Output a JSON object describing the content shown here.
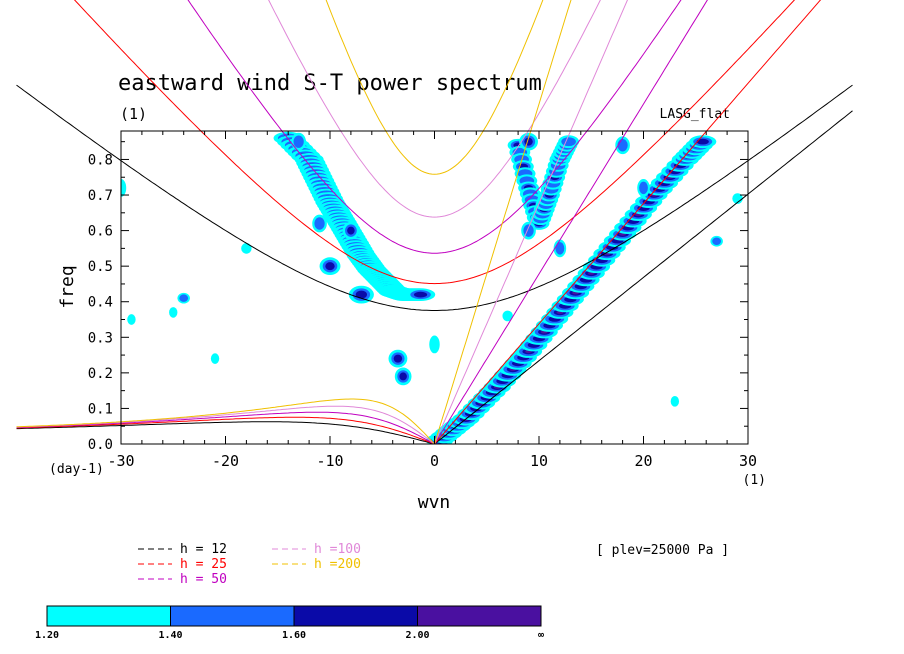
{
  "chart_data": {
    "type": "heatmap",
    "title": "eastward wind S-T power spectrum",
    "subtitle": "(1)",
    "top_right_label": "LASG_flat",
    "xlabel": "wvn",
    "ylabel": "freq",
    "x_unit_label": "(1)",
    "y_unit_label": "(day-1)",
    "xlim": [
      -30,
      30
    ],
    "ylim": [
      0.0,
      0.88
    ],
    "x_ticks": [
      -30,
      -20,
      -10,
      0,
      10,
      20,
      30
    ],
    "x_tick_labels": [
      "-30",
      "-20",
      "-10",
      "0",
      "10",
      "20",
      "30"
    ],
    "y_ticks": [
      0.0,
      0.1,
      0.2,
      0.3,
      0.4,
      0.5,
      0.6,
      0.7,
      0.8
    ],
    "y_tick_labels": [
      "0.0",
      "0.1",
      "0.2",
      "0.3",
      "0.4",
      "0.5",
      "0.6",
      "0.7",
      "0.8"
    ],
    "level_note": "[ plev=25000 Pa ]",
    "dispersion_curves": [
      {
        "label": "h = 12",
        "h": 12,
        "color": "#000000"
      },
      {
        "label": "h = 25",
        "h": 25,
        "color": "#ff0000"
      },
      {
        "label": "h = 50",
        "h": 50,
        "color": "#c000c0"
      },
      {
        "label": "h =100",
        "h": 100,
        "color": "#e088d8"
      },
      {
        "label": "h =200",
        "h": 200,
        "color": "#f0c000"
      }
    ],
    "colorbar": {
      "levels": [
        "1.20",
        "1.40",
        "1.60",
        "2.00",
        "∞"
      ],
      "colors": [
        "#00ffff",
        "#1a6aff",
        "#0a0aa8",
        "#4a10a0"
      ]
    },
    "spectral_ridges": [
      {
        "name": "kelvin",
        "points": [
          [
            0.5,
            0.01
          ],
          [
            3,
            0.07
          ],
          [
            6,
            0.16
          ],
          [
            9,
            0.26
          ],
          [
            12,
            0.37
          ],
          [
            15,
            0.48
          ],
          [
            18,
            0.59
          ],
          [
            21,
            0.7
          ],
          [
            24,
            0.8
          ],
          [
            26,
            0.86
          ]
        ]
      },
      {
        "name": "westward",
        "points": [
          [
            -14,
            0.86
          ],
          [
            -12,
            0.8
          ],
          [
            -11,
            0.74
          ],
          [
            -10,
            0.68
          ],
          [
            -9,
            0.63
          ],
          [
            -8,
            0.58
          ],
          [
            -7,
            0.53
          ],
          [
            -6,
            0.49
          ],
          [
            -5,
            0.46
          ],
          [
            -4,
            0.43
          ],
          [
            -3,
            0.42
          ],
          [
            -1,
            0.42
          ]
        ]
      },
      {
        "name": "eastward-ig",
        "points": [
          [
            8,
            0.84
          ],
          [
            9,
            0.72
          ],
          [
            10,
            0.62
          ],
          [
            11,
            0.7
          ],
          [
            12,
            0.8
          ],
          [
            13,
            0.86
          ]
        ]
      }
    ],
    "spectral_blobs": [
      [
        -3.5,
        0.24,
        0.9,
        0.02
      ],
      [
        -3.0,
        0.19,
        0.8,
        0.02
      ],
      [
        0,
        0.28,
        0.5,
        0.02
      ],
      [
        -7,
        0.42,
        1.2,
        0.02
      ],
      [
        -10,
        0.5,
        1.0,
        0.02
      ],
      [
        -24,
        0.41,
        0.6,
        0.01
      ],
      [
        -18,
        0.55,
        0.5,
        0.01
      ],
      [
        -8,
        0.6,
        0.8,
        0.02
      ],
      [
        -11,
        0.62,
        0.7,
        0.02
      ],
      [
        12,
        0.55,
        0.6,
        0.02
      ],
      [
        9,
        0.6,
        0.7,
        0.02
      ],
      [
        27,
        0.57,
        0.6,
        0.01
      ],
      [
        29,
        0.69,
        0.5,
        0.01
      ],
      [
        18,
        0.84,
        0.7,
        0.02
      ],
      [
        20,
        0.72,
        0.6,
        0.02
      ],
      [
        -30,
        0.72,
        0.5,
        0.02
      ],
      [
        -25,
        0.37,
        0.4,
        0.01
      ],
      [
        -21,
        0.24,
        0.4,
        0.01
      ],
      [
        -29,
        0.35,
        0.4,
        0.01
      ],
      [
        7,
        0.36,
        0.5,
        0.01
      ],
      [
        23,
        0.12,
        0.4,
        0.01
      ],
      [
        -13,
        0.85,
        0.7,
        0.02
      ],
      [
        9,
        0.85,
        0.9,
        0.02
      ]
    ]
  }
}
